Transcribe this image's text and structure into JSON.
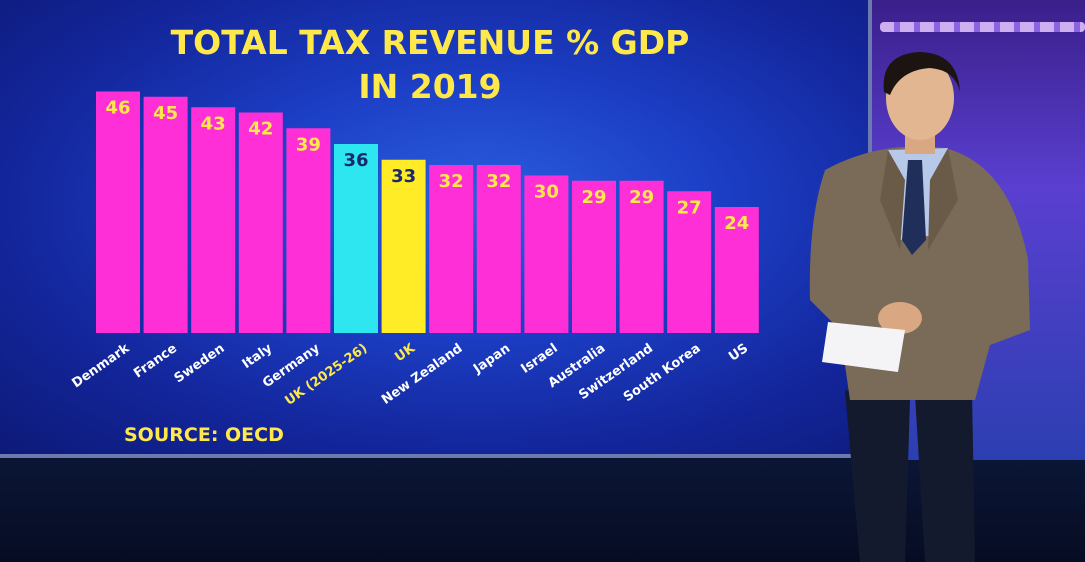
{
  "chart_data": {
    "type": "bar",
    "title_lines": [
      "TOTAL TAX REVENUE % GDP",
      "IN 2019"
    ],
    "categories": [
      "Denmark",
      "France",
      "Sweden",
      "Italy",
      "Germany",
      "UK (2025-26)",
      "UK",
      "New Zealand",
      "Japan",
      "Israel",
      "Australia",
      "Switzerland",
      "South Korea",
      "US"
    ],
    "values": [
      46,
      45,
      43,
      42,
      39,
      36,
      33,
      32,
      32,
      30,
      29,
      29,
      27,
      24
    ],
    "source": "SOURCE: OECD",
    "colors": {
      "default": "#ff2fd8",
      "highlight_cyan": "#2ee6f0",
      "highlight_yellow": "#ffeb26",
      "value_label": "#ffe94a",
      "value_label_dark": "#1a2a6a",
      "axis_label": "#ffffff",
      "axis_label_highlight": "#ffe94a"
    },
    "bar_colors": [
      "#ff2fd8",
      "#ff2fd8",
      "#ff2fd8",
      "#ff2fd8",
      "#ff2fd8",
      "#2ee6f0",
      "#ffeb26",
      "#ff2fd8",
      "#ff2fd8",
      "#ff2fd8",
      "#ff2fd8",
      "#ff2fd8",
      "#ff2fd8",
      "#ff2fd8"
    ],
    "highlighted_categories": [
      "UK (2025-26)",
      "UK"
    ]
  }
}
